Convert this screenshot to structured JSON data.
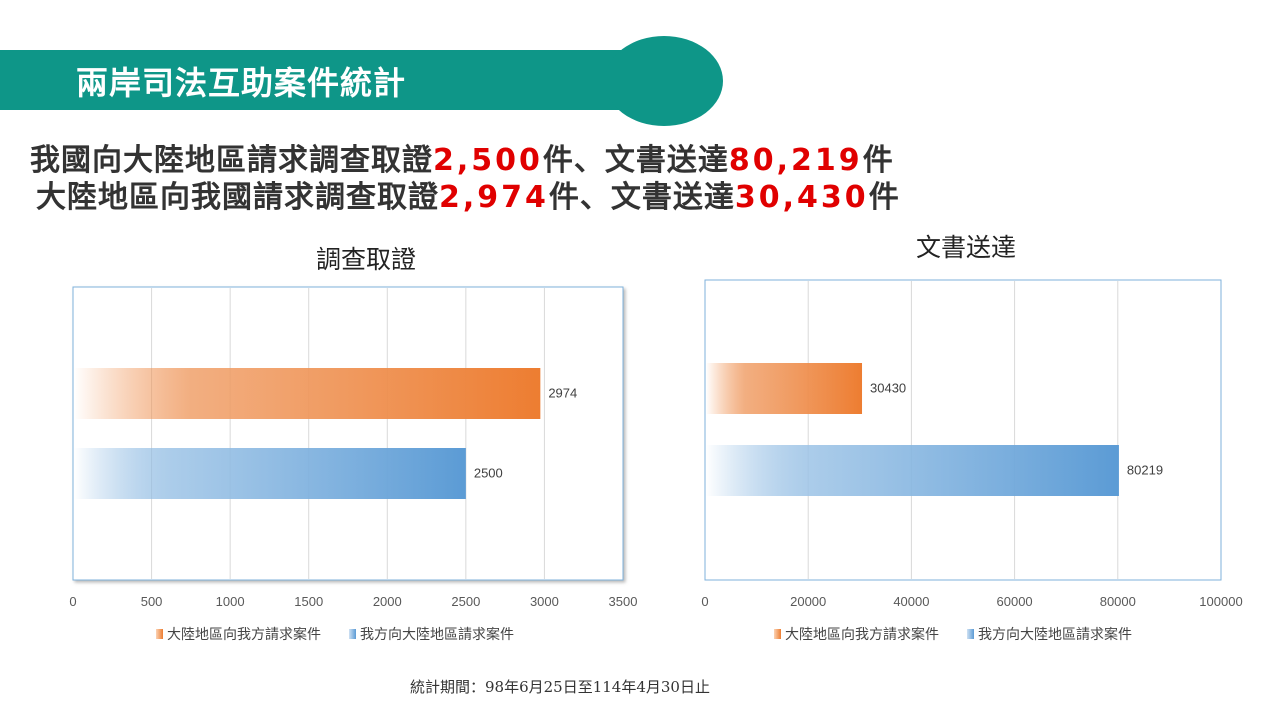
{
  "header": {
    "title": "兩岸司法互助案件統計"
  },
  "headline": {
    "line1": {
      "pre": "我國向大陸地區請求調查取證",
      "n1": "2,500",
      "mid": "件、文書送達",
      "n2": "80,219",
      "post": "件"
    },
    "line2": {
      "pre": "大陸地區向我國請求調查取證",
      "n1": "2,974",
      "mid": "件、文書送達",
      "n2": "30,430",
      "post": "件"
    }
  },
  "chart_data": [
    {
      "type": "bar",
      "orientation": "horizontal",
      "title": "調查取證",
      "series": [
        {
          "name": "大陸地區向我方請求案件",
          "value": 2974,
          "color": "#ed7d31"
        },
        {
          "name": "我方向大陸地區請求案件",
          "value": 2500,
          "color": "#5b9bd5"
        }
      ],
      "xlim": [
        0,
        3500
      ],
      "ticks": [
        0,
        500,
        1000,
        1500,
        2000,
        2500,
        3000,
        3500
      ],
      "grid": true,
      "legend": "bottom"
    },
    {
      "type": "bar",
      "orientation": "horizontal",
      "title": "文書送達",
      "series": [
        {
          "name": "大陸地區向我方請求案件",
          "value": 30430,
          "color": "#ed7d31"
        },
        {
          "name": "我方向大陸地區請求案件",
          "value": 80219,
          "color": "#5b9bd5"
        }
      ],
      "xlim": [
        0,
        100000
      ],
      "ticks": [
        0,
        20000,
        40000,
        60000,
        80000,
        100000
      ],
      "grid": true,
      "legend": "bottom"
    }
  ],
  "footnote": "統計期間：98年6月25日至114年4月30日止"
}
